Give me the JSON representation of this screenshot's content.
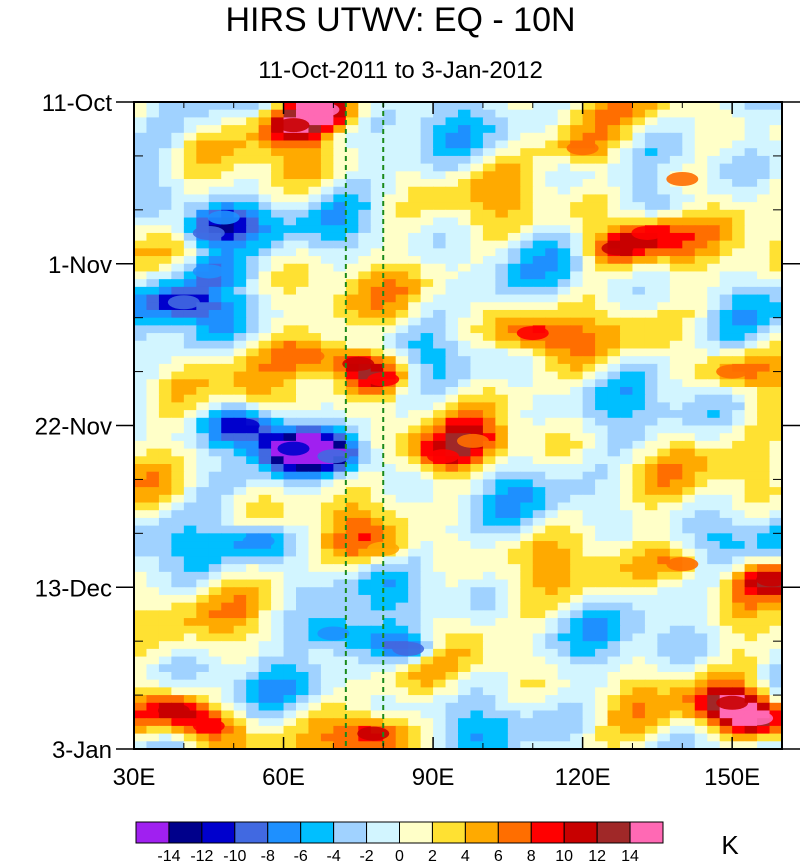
{
  "chart_data": {
    "type": "heatmap",
    "title": "HIRS UTWV: EQ - 10N",
    "subtitle": "11-Oct-2011 to 3-Jan-2012",
    "x_ticks": [
      {
        "value": 30,
        "label": "30E"
      },
      {
        "value": 60,
        "label": "60E"
      },
      {
        "value": 90,
        "label": "90E"
      },
      {
        "value": 120,
        "label": "120E"
      },
      {
        "value": 150,
        "label": "150E"
      }
    ],
    "xlim": [
      30,
      160
    ],
    "y_ticks": [
      {
        "value": 0,
        "label": "11-Oct"
      },
      {
        "value": 21,
        "label": "1-Nov"
      },
      {
        "value": 42,
        "label": "22-Nov"
      },
      {
        "value": 63,
        "label": "13-Dec"
      },
      {
        "value": 84,
        "label": "3-Jan"
      }
    ],
    "ylim": [
      0,
      84
    ],
    "reference_lines_lon": [
      72.5,
      80
    ],
    "reference_line_color": "#1a8a1a",
    "colorbar": {
      "unit": "K",
      "levels": [
        -14,
        -12,
        -10,
        -8,
        -6,
        -4,
        -2,
        0,
        2,
        4,
        6,
        8,
        10,
        12,
        14
      ],
      "labels": [
        "-14",
        "-12",
        "-10",
        "-8",
        "-6",
        "-4",
        "-2",
        "0",
        "2",
        "4",
        "6",
        "8",
        "10",
        "12",
        "14"
      ],
      "colors": [
        "#a020f0",
        "#00008b",
        "#0000cd",
        "#4169e1",
        "#1e90ff",
        "#00bfff",
        "#a0d2ff",
        "#d2f5ff",
        "#ffffc8",
        "#ffe132",
        "#ffaa00",
        "#ff6e00",
        "#ff0000",
        "#c80000",
        "#a02828",
        "#ff69b4"
      ]
    },
    "anomaly_features": [
      {
        "lon": 68,
        "day": 1,
        "value": 14
      },
      {
        "lon": 62,
        "day": 3,
        "value": 10
      },
      {
        "lon": 48,
        "day": 15,
        "value": -8
      },
      {
        "lon": 45,
        "day": 17,
        "value": -10
      },
      {
        "lon": 45,
        "day": 22,
        "value": -8
      },
      {
        "lon": 40,
        "day": 26,
        "value": -10
      },
      {
        "lon": 127,
        "day": 19,
        "value": 10
      },
      {
        "lon": 133,
        "day": 17,
        "value": 8
      },
      {
        "lon": 75,
        "day": 34,
        "value": 10
      },
      {
        "lon": 80,
        "day": 36,
        "value": 8
      },
      {
        "lon": 65,
        "day": 33,
        "value": 6
      },
      {
        "lon": 52,
        "day": 42,
        "value": -12
      },
      {
        "lon": 62,
        "day": 45,
        "value": -12
      },
      {
        "lon": 70,
        "day": 46,
        "value": -10
      },
      {
        "lon": 92,
        "day": 46,
        "value": 8
      },
      {
        "lon": 98,
        "day": 44,
        "value": 6
      },
      {
        "lon": 55,
        "day": 57,
        "value": -8
      },
      {
        "lon": 80,
        "day": 58,
        "value": 5
      },
      {
        "lon": 85,
        "day": 71,
        "value": -10
      },
      {
        "lon": 70,
        "day": 69,
        "value": -8
      },
      {
        "lon": 38,
        "day": 79,
        "value": 10
      },
      {
        "lon": 45,
        "day": 81,
        "value": 8
      },
      {
        "lon": 78,
        "day": 82,
        "value": 10
      },
      {
        "lon": 155,
        "day": 80,
        "value": 14
      },
      {
        "lon": 150,
        "day": 78,
        "value": 10
      },
      {
        "lon": 140,
        "day": 60,
        "value": 6
      },
      {
        "lon": 158,
        "day": 62,
        "value": 10
      },
      {
        "lon": 120,
        "day": 6,
        "value": 6
      },
      {
        "lon": 140,
        "day": 10,
        "value": 6
      },
      {
        "lon": 110,
        "day": 30,
        "value": 8
      },
      {
        "lon": 150,
        "day": 35,
        "value": 6
      }
    ]
  }
}
